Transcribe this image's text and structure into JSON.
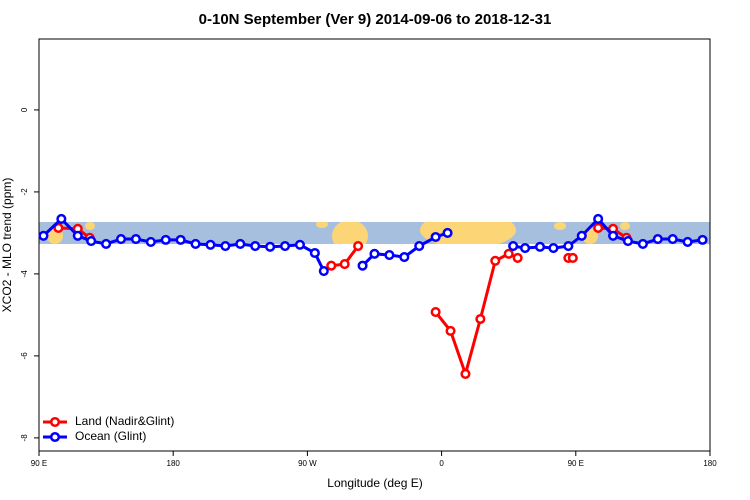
{
  "chart_data": {
    "type": "line",
    "title": "0-10N September (Ver 9)   2014-09-06 to 2018-12-31",
    "x_label": "Longitude (deg E)",
    "y_label": "XCO2 - MLO trend (ppm)",
    "xlim": [
      90,
      540
    ],
    "xticks": [
      {
        "value": 90,
        "label": "90 E"
      },
      180,
      {
        "value": 270,
        "label": "90 W"
      },
      {
        "value": 360,
        "label": "0"
      },
      {
        "value": 450,
        "label": "90 E"
      },
      {
        "value": 540,
        "label": "180"
      }
    ],
    "ylim": [
      -8.32,
      1.73
    ],
    "yticks": [
      0,
      -2,
      -4,
      -6,
      -8
    ],
    "legend": "bottomleft",
    "series": [
      {
        "name": "Land (Nadir&Glint)",
        "color": "#ff0000",
        "x": [
          103,
          116,
          124,
          200,
          286,
          295,
          304,
          330,
          356,
          366,
          376,
          386,
          396,
          405,
          411,
          428,
          445,
          448,
          456,
          465,
          475,
          484
        ],
        "values": [
          -2.88,
          -2.9,
          -3.12,
          null,
          -3.8,
          -3.76,
          -3.32,
          null,
          -4.93,
          -5.39,
          -6.44,
          -5.1,
          -3.68,
          -3.51,
          -3.61,
          null,
          -3.61,
          -3.61,
          null,
          -2.88,
          -2.9,
          -3.12
        ]
      },
      {
        "name": "Ocean (Glint)",
        "color": "#0000ff",
        "x": [
          93,
          105,
          116,
          125,
          135,
          145,
          155,
          165,
          175,
          185,
          195,
          205,
          215,
          225,
          235,
          245,
          255,
          265,
          275,
          281,
          294,
          307,
          315,
          325,
          335,
          345,
          356,
          364,
          386,
          408,
          416,
          426,
          435,
          445,
          454,
          465,
          475,
          485,
          495,
          505,
          515,
          525,
          535
        ],
        "values": [
          -3.07,
          -2.66,
          -3.07,
          -3.2,
          -3.27,
          -3.15,
          -3.15,
          -3.22,
          -3.17,
          -3.17,
          -3.27,
          -3.29,
          -3.32,
          -3.27,
          -3.32,
          -3.34,
          -3.32,
          -3.29,
          -3.49,
          -3.93,
          null,
          -3.8,
          -3.51,
          -3.54,
          -3.59,
          -3.32,
          -3.1,
          -3.0,
          null,
          -3.32,
          -3.37,
          -3.34,
          -3.37,
          -3.32,
          -3.07,
          -2.66,
          -3.07,
          -3.2,
          -3.27,
          -3.15,
          -3.15,
          -3.22,
          -3.17
        ]
      }
    ]
  }
}
